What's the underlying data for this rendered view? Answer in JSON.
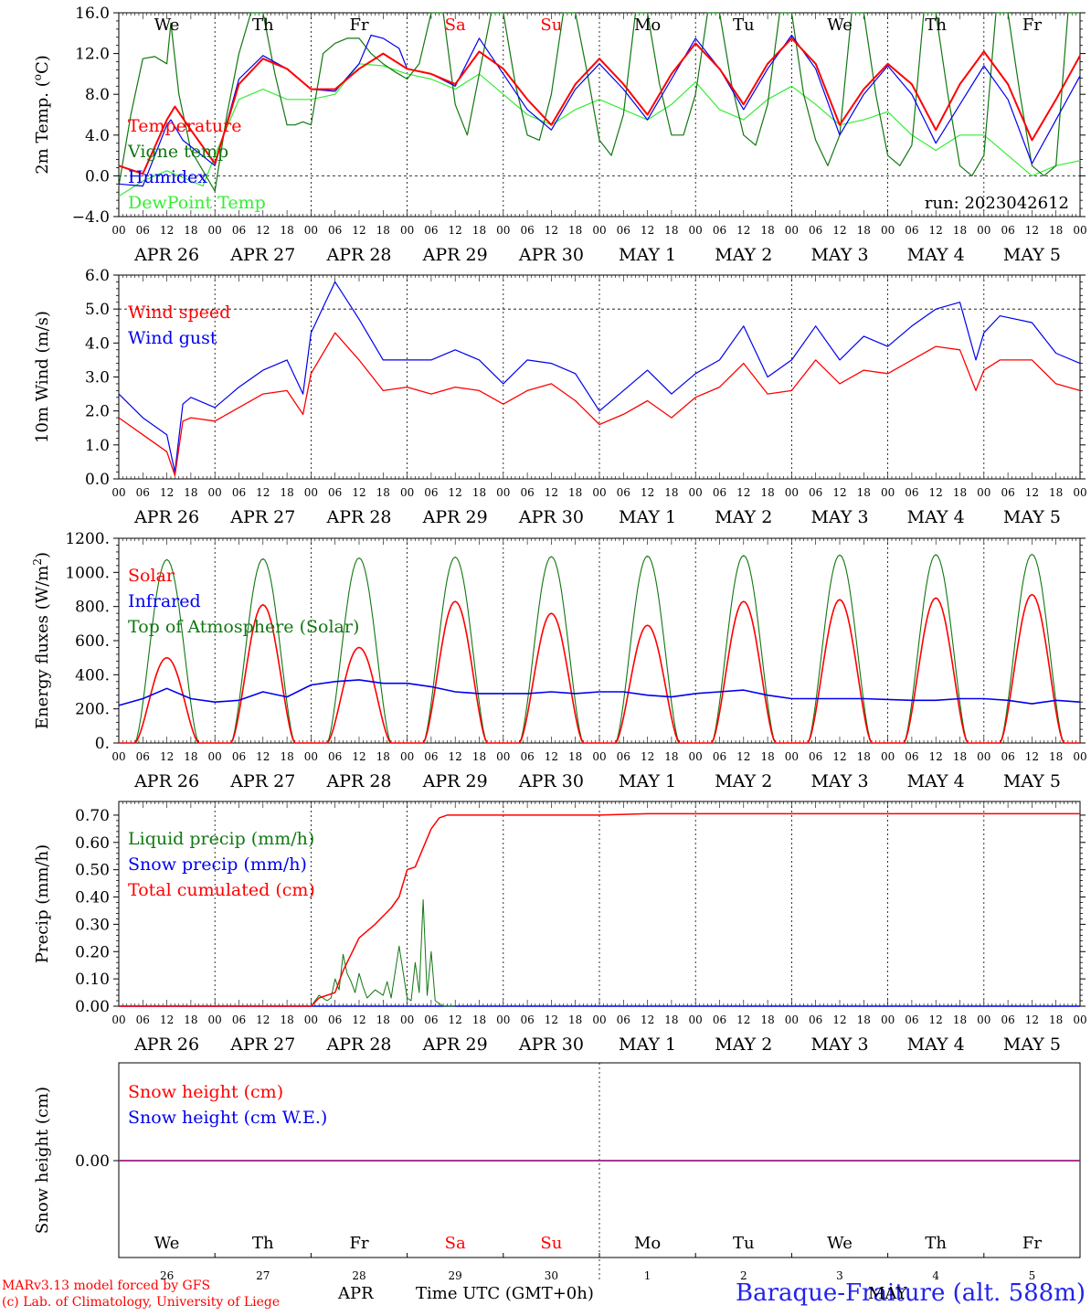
{
  "chart_data": [
    {
      "type": "line",
      "ylabel": "2m Temp. (oC)",
      "ylim": [
        -4,
        16
      ],
      "yticks": [
        -4.0,
        0.0,
        4.0,
        8.0,
        12.0,
        16.0
      ],
      "ytick_labels": [
        "−4.0",
        "0.0",
        "4.0",
        "8.0",
        "12.0",
        "16.0"
      ],
      "dashed_reference_y": [
        0
      ],
      "weekdays": [
        "We",
        "Th",
        "Fr",
        "Sa",
        "Su",
        "Mo",
        "Tu",
        "We",
        "Th",
        "Fr"
      ],
      "weekday_colors": [
        "#000000",
        "#000000",
        "#000000",
        "#ff0000",
        "#ff0000",
        "#000000",
        "#000000",
        "#000000",
        "#000000",
        "#000000"
      ],
      "annotation": "run: 2023042612",
      "series": [
        {
          "name": "Temperature",
          "color": "#ff0000",
          "x": [
            0,
            6,
            12,
            14,
            18,
            24,
            30,
            36,
            42,
            48,
            54,
            60,
            66,
            72,
            78,
            84,
            90,
            96,
            102,
            108,
            114,
            120,
            126,
            132,
            138,
            144,
            150,
            156,
            162,
            168,
            174,
            180,
            186,
            192,
            198,
            204,
            210,
            216,
            222,
            228,
            234,
            240
          ],
          "y": [
            1,
            0.2,
            5.5,
            6.8,
            4.5,
            1.2,
            9,
            11.5,
            10.5,
            8.5,
            8.5,
            10.5,
            12,
            10.5,
            10,
            9,
            12.2,
            10.5,
            7.5,
            5,
            9,
            11.5,
            9,
            6,
            10,
            13,
            10.5,
            7,
            11,
            13.5,
            11,
            5,
            8.5,
            11,
            9,
            4.5,
            9,
            12.2,
            9,
            3.5,
            7.5,
            11.8
          ]
        },
        {
          "name": "Vigne temp",
          "color": "#117711",
          "x": [
            0,
            3,
            6,
            9,
            12,
            13,
            15,
            18,
            21,
            24,
            27,
            30,
            33,
            36,
            39,
            42,
            44,
            46,
            48,
            51,
            54,
            57,
            60,
            63,
            66,
            69,
            72,
            75,
            78,
            81,
            84,
            87,
            90,
            93,
            96,
            99,
            102,
            105,
            108,
            111,
            114,
            117,
            120,
            123,
            126,
            129,
            132,
            135,
            138,
            141,
            144,
            147,
            150,
            153,
            156,
            159,
            162,
            165,
            168,
            171,
            174,
            177,
            180,
            183,
            186,
            189,
            192,
            195,
            198,
            201,
            204,
            207,
            210,
            213,
            216,
            219,
            222,
            225,
            228,
            231,
            234,
            237,
            240
          ],
          "y": [
            -1,
            6,
            11.5,
            11.7,
            11,
            15,
            8,
            2.5,
            0.5,
            -1.5,
            6,
            12,
            16,
            16,
            10,
            5,
            5,
            5.3,
            5,
            12,
            13,
            13.5,
            13.5,
            12,
            11,
            10.2,
            9.5,
            11,
            16,
            16,
            7,
            4,
            10,
            16,
            16,
            9,
            4,
            3.5,
            8,
            16,
            16,
            10,
            3.5,
            2,
            6,
            16,
            16,
            9,
            4,
            4,
            8,
            16,
            16,
            9,
            4,
            3,
            7,
            16,
            16,
            8,
            3.5,
            1,
            4,
            16,
            16,
            8,
            2,
            1,
            3,
            16,
            16,
            8,
            1,
            0,
            2,
            16,
            16,
            8,
            1,
            0,
            1,
            16,
            16
          ]
        },
        {
          "name": "Humidex",
          "color": "#0000ee",
          "x": [
            0,
            6,
            12,
            13,
            16,
            24,
            30,
            36,
            42,
            48,
            54,
            60,
            63,
            66,
            70,
            72,
            78,
            84,
            90,
            96,
            102,
            108,
            114,
            120,
            126,
            132,
            138,
            144,
            150,
            156,
            162,
            168,
            174,
            180,
            186,
            192,
            198,
            204,
            210,
            216,
            222,
            228,
            234,
            240
          ],
          "y": [
            -0.8,
            -1,
            5,
            5.5,
            3.5,
            1,
            9.5,
            11.8,
            10.5,
            8.5,
            8.3,
            11,
            13.8,
            13.5,
            12.5,
            10.5,
            10,
            8.8,
            13.5,
            10,
            6.5,
            4.5,
            8.5,
            11,
            8.5,
            5.5,
            9.5,
            13.5,
            10.5,
            6.5,
            10.5,
            13.8,
            10.5,
            4,
            8,
            10.8,
            8,
            3.2,
            7,
            10.8,
            7.5,
            1.2,
            5.5,
            9.8
          ]
        },
        {
          "name": "DewPoint Temp",
          "color": "#33ee33",
          "x": [
            0,
            6,
            12,
            18,
            21,
            24,
            30,
            36,
            42,
            48,
            54,
            60,
            66,
            72,
            78,
            84,
            90,
            96,
            102,
            108,
            114,
            120,
            126,
            132,
            138,
            144,
            150,
            156,
            162,
            168,
            174,
            180,
            186,
            192,
            198,
            204,
            210,
            216,
            222,
            228,
            234,
            240
          ],
          "y": [
            -2,
            -0.5,
            0.5,
            -0.5,
            -1,
            2,
            7.5,
            8.5,
            7.5,
            7.5,
            8,
            11,
            10.8,
            10,
            9.5,
            8.5,
            10,
            8,
            6,
            5,
            6.5,
            7.5,
            6.5,
            5.5,
            7,
            9.2,
            6.5,
            5.5,
            7.5,
            8.8,
            7,
            5,
            5.5,
            6.3,
            4,
            2.5,
            4,
            4,
            2,
            0,
            1,
            1.5
          ]
        }
      ]
    },
    {
      "type": "line",
      "ylabel": "10m Wind (m/s)",
      "ylim": [
        0,
        6
      ],
      "yticks": [
        0.0,
        1.0,
        2.0,
        3.0,
        4.0,
        5.0,
        6.0
      ],
      "ytick_labels": [
        "0.0",
        "1.0",
        "2.0",
        "3.0",
        "4.0",
        "5.0",
        "6.0"
      ],
      "dashed_reference_y": [
        5
      ],
      "series": [
        {
          "name": "Wind speed",
          "color": "#ff0000",
          "x": [
            0,
            6,
            12,
            14,
            16,
            18,
            24,
            30,
            36,
            42,
            46,
            48,
            54,
            60,
            66,
            72,
            78,
            84,
            90,
            96,
            102,
            108,
            114,
            120,
            126,
            132,
            138,
            144,
            150,
            156,
            162,
            168,
            174,
            180,
            186,
            192,
            198,
            204,
            210,
            214,
            216,
            220,
            228,
            234,
            240
          ],
          "y": [
            1.8,
            1.3,
            0.8,
            0.1,
            1.7,
            1.8,
            1.7,
            2.1,
            2.5,
            2.6,
            1.9,
            3.1,
            4.3,
            3.5,
            2.6,
            2.7,
            2.5,
            2.7,
            2.6,
            2.2,
            2.6,
            2.8,
            2.3,
            1.6,
            1.9,
            2.3,
            1.8,
            2.4,
            2.7,
            3.4,
            2.5,
            2.6,
            3.5,
            2.8,
            3.2,
            3.1,
            3.5,
            3.9,
            3.8,
            2.6,
            3.2,
            3.5,
            3.5,
            2.8,
            2.6
          ]
        },
        {
          "name": "Wind gust",
          "color": "#0000ee",
          "x": [
            0,
            6,
            12,
            14,
            16,
            18,
            24,
            30,
            36,
            42,
            46,
            48,
            54,
            60,
            66,
            72,
            78,
            84,
            90,
            96,
            102,
            108,
            114,
            120,
            126,
            132,
            138,
            144,
            150,
            156,
            162,
            168,
            174,
            180,
            186,
            192,
            198,
            204,
            210,
            214,
            216,
            220,
            228,
            234,
            240
          ],
          "y": [
            2.5,
            1.8,
            1.3,
            0.2,
            2.2,
            2.4,
            2.1,
            2.7,
            3.2,
            3.5,
            2.5,
            4.3,
            5.8,
            4.7,
            3.5,
            3.5,
            3.5,
            3.8,
            3.5,
            2.8,
            3.5,
            3.4,
            3.1,
            2.0,
            2.6,
            3.2,
            2.5,
            3.1,
            3.5,
            4.5,
            3.0,
            3.5,
            4.5,
            3.5,
            4.2,
            3.9,
            4.5,
            5.0,
            5.2,
            3.5,
            4.3,
            4.8,
            4.6,
            3.7,
            3.4
          ]
        }
      ]
    },
    {
      "type": "line",
      "ylabel": "Energy fluxes (W/m2)",
      "ylim": [
        0,
        1200
      ],
      "yticks": [
        0,
        200,
        400,
        600,
        800,
        1000,
        1200
      ],
      "ytick_labels": [
        "0.",
        "200.",
        "400.",
        "600.",
        "800.",
        "1000.",
        "1200."
      ],
      "series": [
        {
          "name": "Solar",
          "color": "#ff0000",
          "daily_peak": [
            500,
            810,
            560,
            830,
            760,
            690,
            830,
            840,
            850,
            870
          ],
          "sunrise_hour": 4,
          "sunset_hour": 20
        },
        {
          "name": "Infrared",
          "color": "#0000ee",
          "x": [
            0,
            6,
            12,
            18,
            24,
            30,
            36,
            42,
            48,
            54,
            60,
            66,
            72,
            78,
            84,
            90,
            96,
            102,
            108,
            114,
            120,
            126,
            132,
            138,
            144,
            150,
            156,
            162,
            168,
            174,
            180,
            186,
            192,
            198,
            204,
            210,
            216,
            222,
            228,
            234,
            240
          ],
          "y": [
            220,
            260,
            320,
            260,
            240,
            250,
            300,
            270,
            340,
            360,
            370,
            350,
            350,
            330,
            300,
            290,
            290,
            290,
            300,
            290,
            300,
            300,
            280,
            270,
            290,
            300,
            310,
            280,
            260,
            260,
            260,
            260,
            255,
            250,
            250,
            260,
            260,
            250,
            230,
            250,
            240
          ]
        },
        {
          "name": "Top of Atmosphere (Solar)",
          "color": "#117711",
          "daily_peak": [
            1075,
            1080,
            1085,
            1090,
            1093,
            1096,
            1099,
            1102,
            1104,
            1106
          ],
          "sunrise_hour": 4,
          "sunset_hour": 20
        }
      ]
    },
    {
      "type": "line",
      "ylabel": "Precip (mm/h)",
      "ylim": [
        0,
        0.75
      ],
      "yticks": [
        0.0,
        0.1,
        0.2,
        0.3,
        0.4,
        0.5,
        0.6,
        0.7
      ],
      "ytick_labels": [
        "0.00",
        "0.10",
        "0.20",
        "0.30",
        "0.40",
        "0.50",
        "0.60",
        "0.70"
      ],
      "series": [
        {
          "name": "Liquid precip (mm/h)",
          "color": "#117711",
          "x": [
            48,
            50,
            52,
            53,
            54,
            55,
            56,
            57,
            58,
            59,
            60,
            61,
            62,
            64,
            66,
            67,
            68,
            70,
            72,
            73,
            74,
            75,
            76,
            77,
            78,
            79,
            80,
            81,
            82,
            84
          ],
          "y": [
            0,
            0.04,
            0.02,
            0.03,
            0.1,
            0.06,
            0.19,
            0.12,
            0.09,
            0.05,
            0.12,
            0.07,
            0.03,
            0.06,
            0.04,
            0.09,
            0.03,
            0.22,
            0.03,
            0.02,
            0.16,
            0.05,
            0.39,
            0.04,
            0.2,
            0.02,
            0.01,
            0.0,
            0,
            0
          ]
        },
        {
          "name": "Snow precip (mm/h)",
          "color": "#0000ee",
          "x": [
            0,
            240
          ],
          "y": [
            0,
            0
          ]
        },
        {
          "name": "Total cumulated (cm)",
          "color": "#ff0000",
          "x": [
            0,
            48,
            50,
            54,
            56,
            60,
            64,
            68,
            70,
            72,
            74,
            76,
            78,
            80,
            82,
            84,
            120,
            132,
            240
          ],
          "y": [
            0,
            0,
            0.03,
            0.05,
            0.13,
            0.25,
            0.3,
            0.36,
            0.4,
            0.5,
            0.51,
            0.58,
            0.65,
            0.69,
            0.7,
            0.7,
            0.7,
            0.705,
            0.705
          ]
        }
      ]
    },
    {
      "type": "line",
      "ylabel": "Snow height (cm)",
      "ytick_labels": [
        "0.00"
      ],
      "series": [
        {
          "name": "Snow height (cm)",
          "color": "#ff0000",
          "x": [
            0,
            240
          ],
          "y": [
            0,
            0
          ]
        },
        {
          "name": "Snow height (cm W.E.)",
          "color": "#0000ee",
          "x": [
            0,
            240
          ],
          "y": [
            0,
            0
          ]
        }
      ],
      "weekdays": [
        "We",
        "Th",
        "Fr",
        "Sa",
        "Su",
        "Mo",
        "Tu",
        "We",
        "Th",
        "Fr"
      ],
      "day_numbers": [
        "26",
        "27",
        "28",
        "29",
        "30",
        "1",
        "2",
        "3",
        "4",
        "5"
      ],
      "month_labels": [
        "APR",
        "MAY"
      ],
      "xlabel": "Time UTC (GMT+0h)"
    }
  ],
  "x_axis": {
    "hour_labels": [
      "00",
      "06",
      "12",
      "18"
    ],
    "date_labels": [
      "APR 26",
      "APR 27",
      "APR 28",
      "APR 29",
      "APR 30",
      "MAY  1",
      "MAY  2",
      "MAY  3",
      "MAY  4",
      "MAY  5"
    ]
  },
  "footer": {
    "model_line": "MARv3.13 model forced by GFS",
    "credit_line": "(c) Lab. of Climatology, University of Liege",
    "station": "Baraque-Fraiture (alt. 588m)"
  },
  "colors": {
    "red": "#ff0000",
    "green": "#117711",
    "blue": "#0000ee",
    "lightgreen": "#33ee33",
    "purple": "#882299"
  }
}
